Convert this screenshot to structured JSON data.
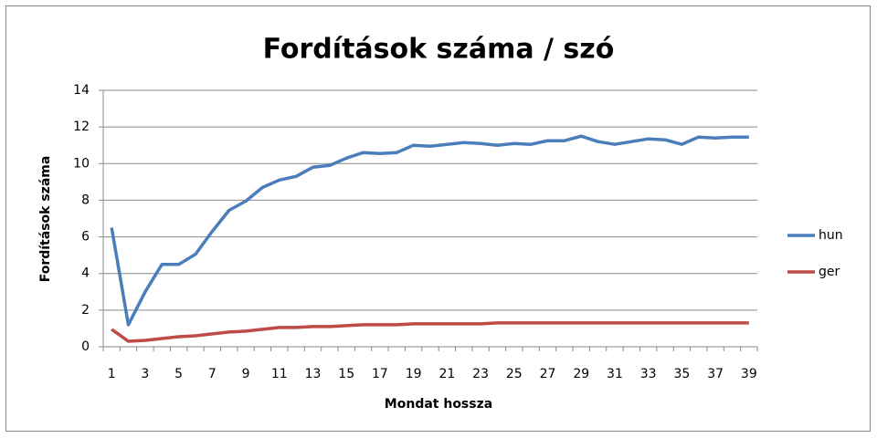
{
  "chart_data": {
    "type": "line",
    "title": "Fordítások száma / szó",
    "x_label": "Mondat hossza",
    "y_label": "Fordítások száma",
    "categories": [
      1,
      null,
      3,
      null,
      5,
      null,
      7,
      null,
      9,
      null,
      11,
      null,
      13,
      null,
      15,
      null,
      17,
      null,
      19,
      null,
      21,
      null,
      23,
      null,
      25,
      null,
      27,
      null,
      29,
      null,
      31,
      null,
      33,
      null,
      35,
      null,
      37,
      null,
      39
    ],
    "series": [
      {
        "name": "hun",
        "color": "#4a7ebb",
        "values": [
          6.5,
          1.2,
          3.0,
          4.5,
          4.5,
          5.05,
          6.3,
          7.45,
          7.95,
          8.7,
          9.1,
          9.3,
          9.8,
          9.9,
          10.3,
          10.6,
          10.55,
          10.6,
          11.0,
          10.95,
          11.05,
          11.15,
          11.1,
          11.0,
          11.1,
          11.05,
          11.25,
          11.25,
          11.5,
          11.2,
          11.05,
          11.2,
          11.35,
          11.3,
          11.05,
          11.45,
          11.4,
          11.45,
          11.45
        ]
      },
      {
        "name": "ger",
        "color": "#be4b48",
        "values": [
          0.95,
          0.3,
          0.35,
          0.45,
          0.55,
          0.6,
          0.7,
          0.8,
          0.85,
          0.95,
          1.05,
          1.05,
          1.1,
          1.1,
          1.15,
          1.2,
          1.2,
          1.2,
          1.25,
          1.25,
          1.25,
          1.25,
          1.25,
          1.3,
          1.3,
          1.3,
          1.3,
          1.3,
          1.3,
          1.3,
          1.3,
          1.3,
          1.3,
          1.3,
          1.3,
          1.3,
          1.3,
          1.3,
          1.3
        ]
      }
    ],
    "ylim": [
      0,
      14
    ],
    "yticks": [
      0,
      2,
      4,
      6,
      8,
      10,
      12,
      14
    ],
    "grid": true,
    "legend": "right"
  }
}
